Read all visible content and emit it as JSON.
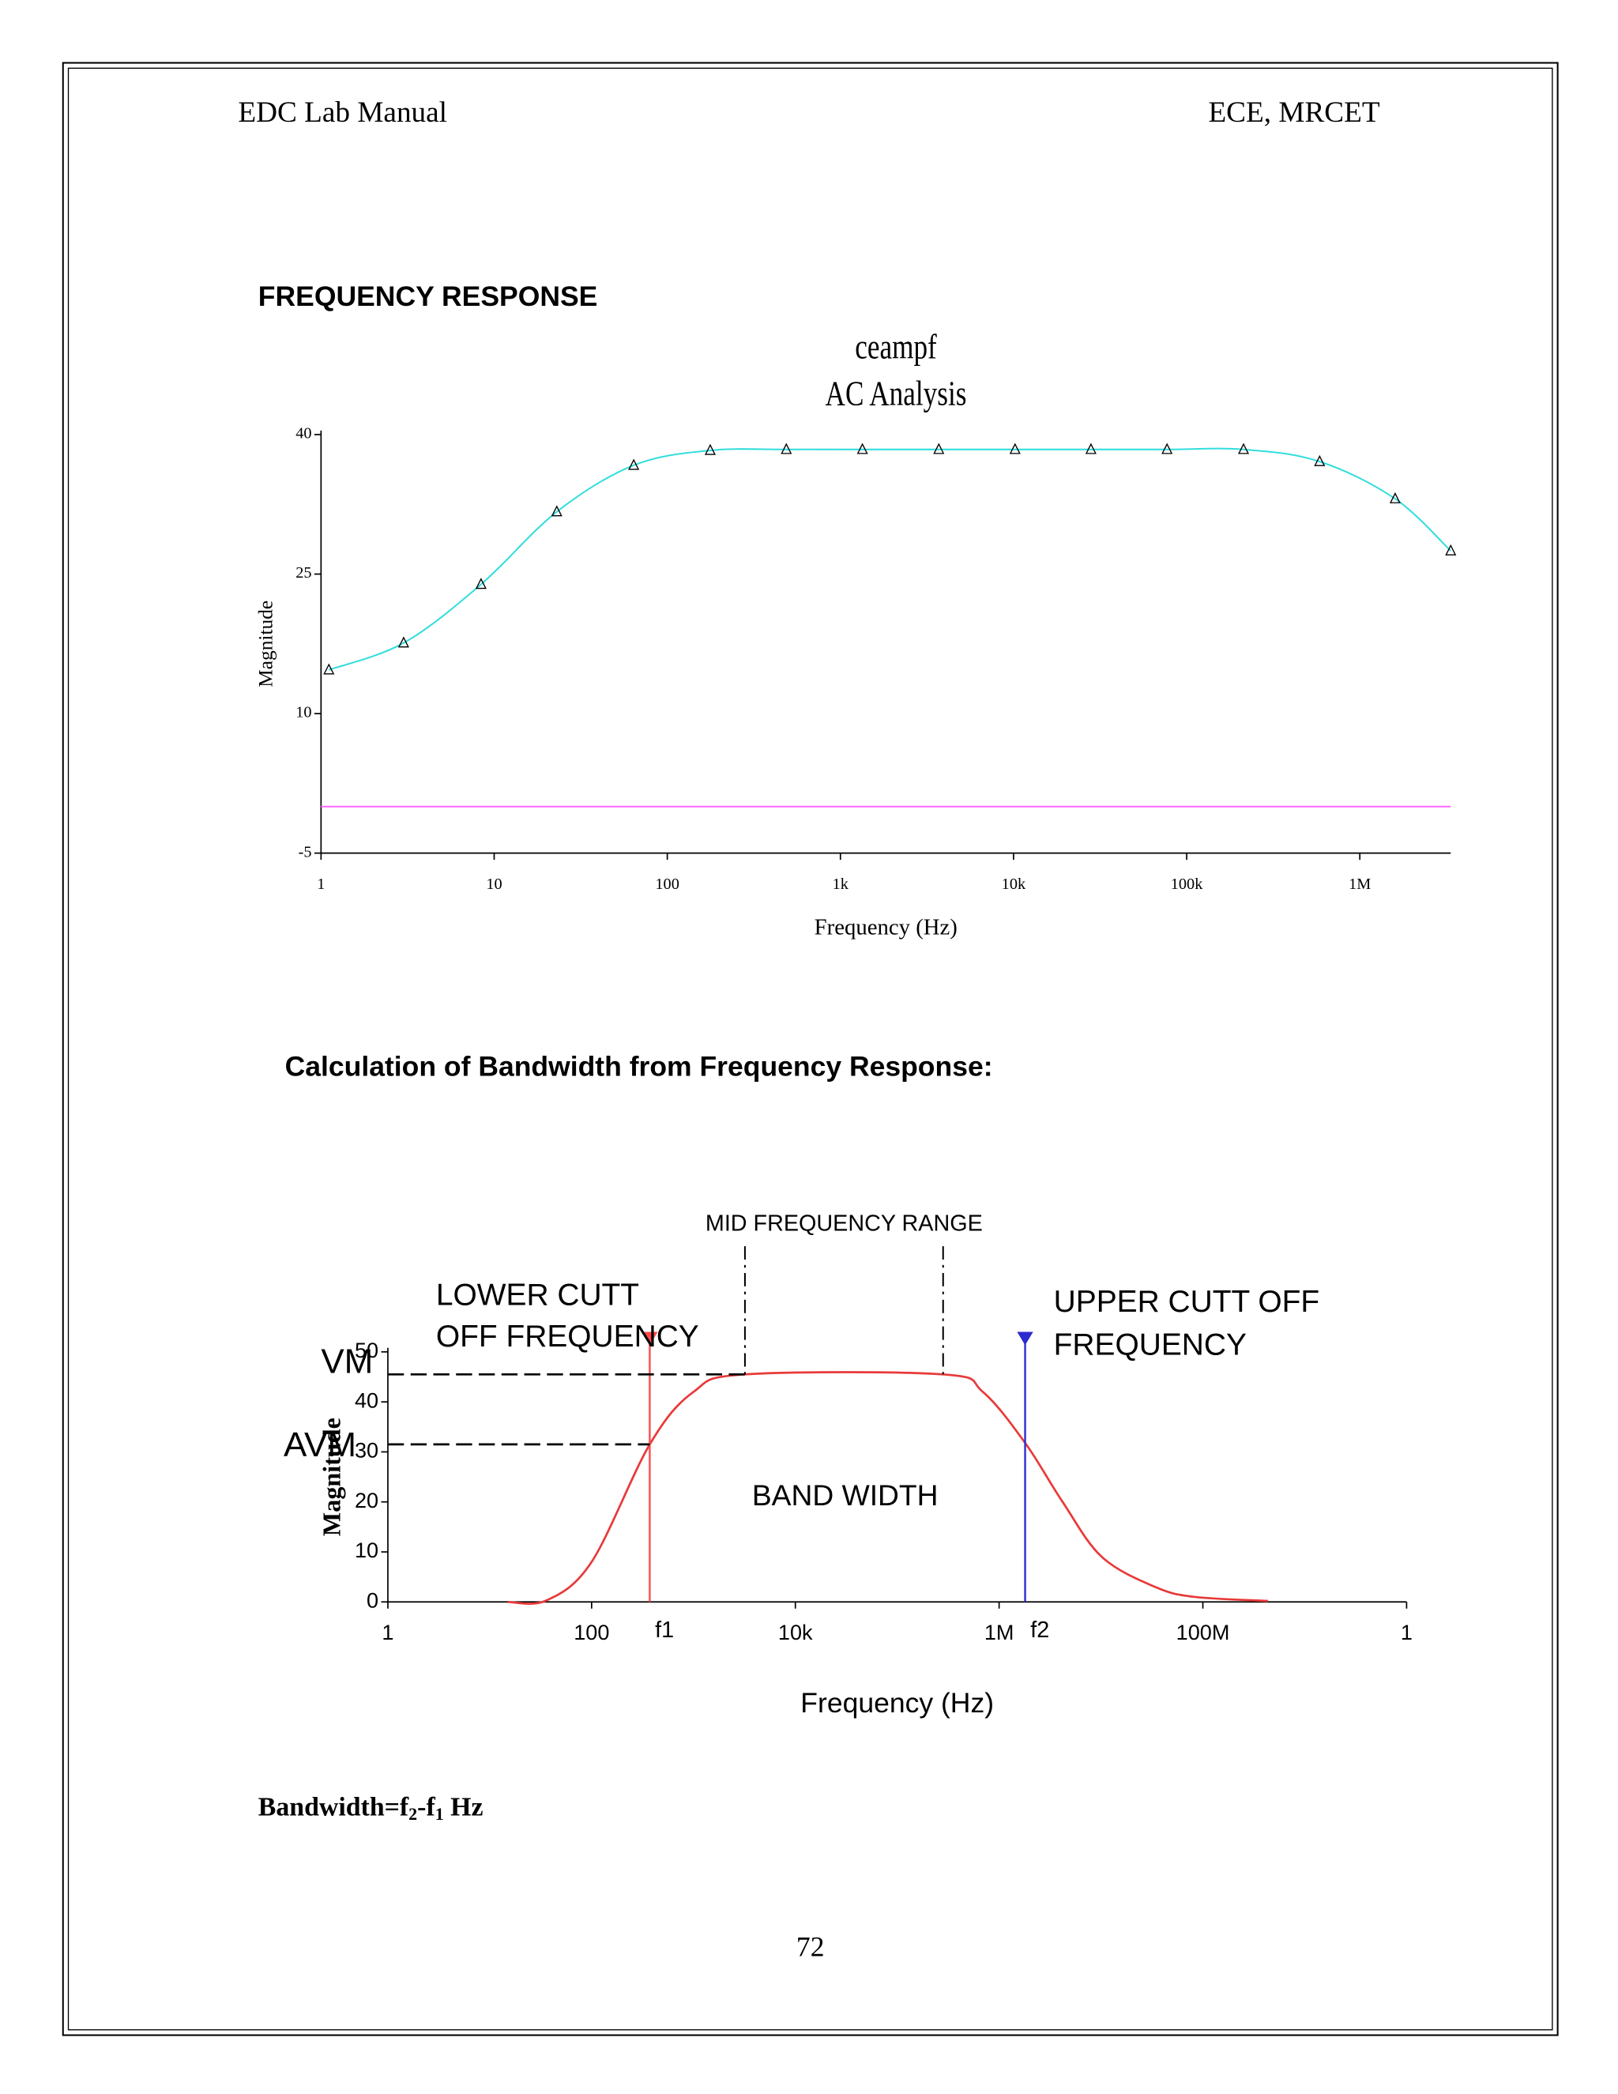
{
  "header": {
    "left": "EDC Lab Manual",
    "right": "ECE, MRCET"
  },
  "headings": [
    "FREQUENCY RESPONSE",
    "Calculation of Bandwidth from Frequency Response:"
  ],
  "chart_data": [
    {
      "type": "line",
      "title": "ceampf",
      "subtitle": "AC Analysis",
      "x_label": "Frequency (Hz)",
      "y_label": "Magnitude",
      "x_scale": "log",
      "xlim": [
        1,
        3350000
      ],
      "ylim": [
        -5,
        40
      ],
      "xticks": [
        1,
        10,
        100,
        {
          "value": 1000,
          "label": "1k"
        },
        {
          "value": 10000,
          "label": "10k"
        },
        {
          "value": 100000,
          "label": "100k"
        },
        {
          "value": 1000000,
          "label": "1M"
        }
      ],
      "yticks": [
        -5,
        10,
        25,
        40
      ],
      "series": [
        {
          "color": "#33dddd",
          "marker": "triangle",
          "x": [
            1.11,
            3.0,
            8.4,
            23,
            64,
            177,
            487,
            1340,
            3700,
            10200,
            28000,
            77000,
            213000,
            586000,
            1600000,
            3350000
          ],
          "values": [
            14.7,
            17.6,
            23.9,
            31.7,
            36.7,
            38.3,
            38.4,
            38.4,
            38.4,
            38.4,
            38.4,
            38.4,
            38.4,
            37.1,
            33.1,
            27.5
          ]
        },
        {
          "color": "#ff66ff",
          "x": [
            1,
            3350000
          ],
          "values": [
            0,
            0
          ]
        }
      ]
    },
    {
      "type": "line",
      "x_label": "Frequency (Hz)",
      "y_label": "Magnitude",
      "x_scale": "log",
      "xlim": [
        1,
        10000000000
      ],
      "ylim": [
        0,
        50
      ],
      "xticks": [
        1,
        100,
        {
          "value": 10000,
          "label": "10k"
        },
        {
          "value": 1000000,
          "label": "1M"
        },
        {
          "value": 100000000,
          "label": "100M"
        },
        {
          "value": 10000000000,
          "label": "1"
        }
      ],
      "yticks": [
        0,
        10,
        20,
        30,
        40,
        50
      ],
      "series": [
        {
          "color": "#e83a3a",
          "x": [
            15,
            36,
            100,
            372,
            1000,
            3200,
            282000,
            692000,
            1800000,
            4200000,
            10200000,
            34000000,
            83000000,
            436000000
          ],
          "values": [
            0,
            0.3,
            8,
            31.5,
            42,
            45.5,
            45.5,
            42,
            31.8,
            20,
            9,
            3,
            1,
            0.2
          ]
        }
      ],
      "levels": [
        {
          "label": "VM",
          "value": 45.5
        },
        {
          "label": "AVM",
          "value": 31.5
        }
      ],
      "cutoffs": [
        {
          "label": "f1",
          "x": 372,
          "color": "#ff4a4a"
        },
        {
          "label": "f2",
          "x": 1800000,
          "color": "#2b2bd0"
        }
      ],
      "mid_range": {
        "label": "MID FREQUENCY RANGE",
        "x": [
          3200,
          282000
        ]
      },
      "lower_cutoff_label": [
        "LOWER CUTT",
        "OFF FREQUENCY"
      ],
      "upper_cutoff_label": [
        "UPPER CUTT OFF",
        "FREQUENCY"
      ],
      "band_label": "BAND WIDTH"
    }
  ],
  "bandwidth": [
    {
      "text": "Bandwidth=f"
    },
    {
      "text": "2",
      "sub": true
    },
    {
      "text": "-f"
    },
    {
      "text": "1",
      "sub": true
    },
    {
      "text": " Hz"
    }
  ],
  "page_number": "72"
}
